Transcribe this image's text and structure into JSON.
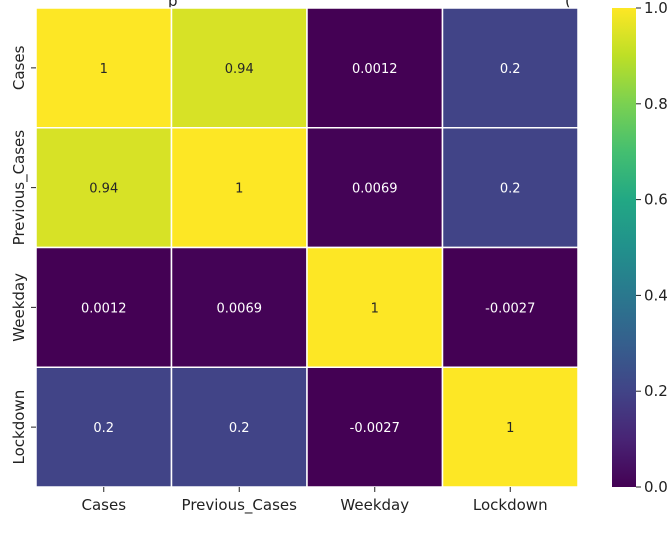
{
  "chart_data": {
    "type": "heatmap",
    "title_fragment": "p",
    "title_fragment_right": "(",
    "rows": [
      "Cases",
      "Previous_Cases",
      "Weekday",
      "Lockdown"
    ],
    "columns": [
      "Cases",
      "Previous_Cases",
      "Weekday",
      "Lockdown"
    ],
    "values": [
      [
        1,
        0.94,
        0.0012,
        0.2
      ],
      [
        0.94,
        1,
        0.0069,
        0.2
      ],
      [
        0.0012,
        0.0069,
        1,
        -0.0027
      ],
      [
        0.2,
        0.2,
        -0.0027,
        1
      ]
    ],
    "cell_labels": [
      [
        "1",
        "0.94",
        "0.0012",
        "0.2"
      ],
      [
        "0.94",
        "1",
        "0.0069",
        "0.2"
      ],
      [
        "0.0012",
        "0.0069",
        "1",
        "-0.0027"
      ],
      [
        "0.2",
        "0.2",
        "-0.0027",
        "1"
      ]
    ],
    "colorbar": {
      "colormap": "viridis",
      "range": [
        0.0,
        1.0
      ],
      "ticks": [
        "0.0",
        "0.2",
        "0.4",
        "0.6",
        "0.8",
        "1.0"
      ]
    },
    "cell_border_color": "#ffffff",
    "grid": false
  }
}
